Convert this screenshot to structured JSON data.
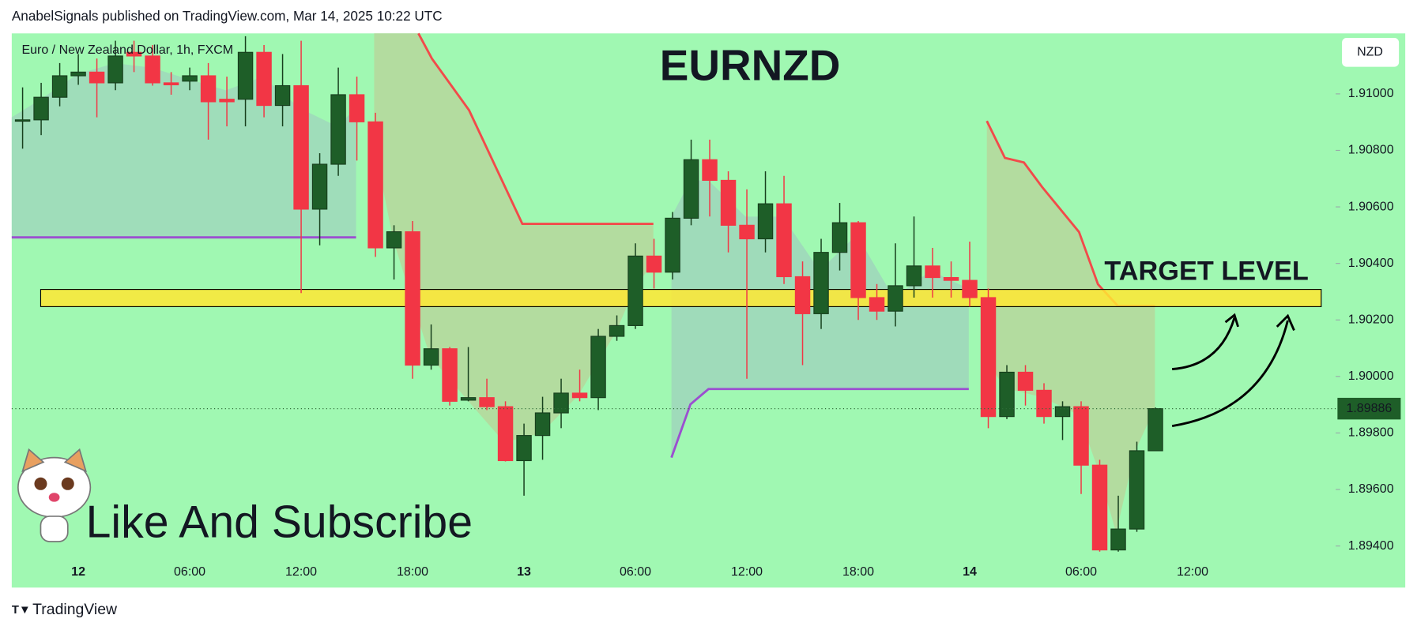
{
  "chart_data": {
    "type": "candlestick",
    "header": "AnabelSignals published on TradingView.com, Mar 14, 2025 10:22 UTC",
    "symbol": "Euro / New Zealand Dollar, 1h, FXCM",
    "title": "EURNZD",
    "currency": "NZD",
    "annotation": "TARGET LEVEL",
    "caption": "Like And Subscribe",
    "brand": "TradingView",
    "up_color": "#1e5e28",
    "down_color": "#f23645",
    "zone_color": "#ffe733",
    "target_zone": [
      1.90247,
      1.90308
    ],
    "categories": [
      null,
      null,
      null,
      "12",
      null,
      null,
      null,
      null,
      null,
      "06:00",
      null,
      null,
      null,
      null,
      null,
      "12:00",
      null,
      null,
      null,
      null,
      null,
      "18:00",
      null,
      null,
      null,
      null,
      null,
      "13",
      null,
      null,
      null,
      null,
      null,
      "06:00",
      null,
      null,
      null,
      null,
      null,
      "12:00",
      null,
      null,
      null,
      null,
      null,
      "18:00",
      null,
      null,
      null,
      null,
      null,
      "14",
      null,
      null,
      null,
      null,
      null,
      "06:00",
      null,
      null,
      null,
      null,
      null,
      "12:00"
    ],
    "open": [
      1.90908,
      1.90908,
      1.90988,
      1.91064,
      1.91077,
      1.91039,
      1.91147,
      1.91134,
      1.91039,
      1.91045,
      1.91064,
      1.90981,
      1.90981,
      1.91147,
      1.90959,
      1.91029,
      1.90592,
      1.90751,
      1.90997,
      1.90901,
      1.90455,
      1.90512,
      1.9004,
      1.90098,
      1.89916,
      1.89925,
      1.89893,
      1.89702,
      1.89791,
      1.89871,
      1.89941,
      1.89925,
      1.90142,
      1.9018,
      1.90426,
      1.90369,
      1.9056,
      1.90767,
      1.90694,
      1.90535,
      1.90487,
      1.90611,
      1.90353,
      1.90222,
      1.90439,
      1.90544,
      1.90279,
      1.90231,
      1.90321,
      1.90391,
      1.9035,
      1.9034,
      1.90279,
      1.89858,
      1.90015,
      1.89951,
      1.89858,
      1.89893,
      1.89686,
      1.89386,
      1.8946,
      1.89737,
      null,
      null
    ],
    "high": [
      1.91023,
      1.91039,
      1.91109,
      1.91141,
      1.91125,
      1.91188,
      1.91188,
      1.91173,
      1.91077,
      1.91093,
      1.91109,
      1.91061,
      1.91204,
      1.91173,
      1.91141,
      1.91188,
      1.9079,
      1.91093,
      1.91061,
      1.90933,
      1.90535,
      1.9055,
      1.90184,
      1.90104,
      1.90104,
      1.89992,
      1.89912,
      1.89833,
      1.89928,
      1.89992,
      1.90024,
      1.90168,
      1.90216,
      1.90471,
      1.90487,
      1.90582,
      1.90838,
      1.90838,
      1.90726,
      1.90662,
      1.90726,
      1.9071,
      1.90407,
      1.90487,
      1.90614,
      1.9055,
      1.90327,
      1.90471,
      1.90566,
      1.90455,
      1.90407,
      1.90477,
      1.90311,
      1.9004,
      1.9004,
      1.89976,
      1.89912,
      1.89912,
      1.89705,
      1.89578,
      1.89769,
      1.8989,
      null,
      null
    ],
    "low": [
      1.90806,
      1.90854,
      1.90956,
      1.91032,
      1.90917,
      1.91013,
      1.91077,
      1.91029,
      1.90997,
      1.91013,
      1.90838,
      1.90885,
      1.90885,
      1.90917,
      1.90885,
      1.90295,
      1.90464,
      1.9071,
      1.90764,
      1.90423,
      1.90343,
      1.89992,
      1.90024,
      1.89897,
      1.89912,
      1.89881,
      1.89699,
      1.89578,
      1.89705,
      1.89817,
      1.89912,
      1.89881,
      1.90126,
      1.90168,
      1.90311,
      1.90343,
      1.90535,
      1.90566,
      1.90439,
      1.89992,
      1.90439,
      1.90327,
      1.9004,
      1.90168,
      1.90375,
      1.902,
      1.902,
      1.90177,
      1.90279,
      1.90279,
      1.90279,
      1.90247,
      1.89817,
      1.89849,
      1.89897,
      1.89833,
      1.89775,
      1.89584,
      1.8938,
      1.8938,
      1.8945,
      1.89737,
      null,
      null
    ],
    "close": [
      1.90908,
      1.90988,
      1.91064,
      1.91077,
      1.91039,
      1.91134,
      1.91134,
      1.91039,
      1.91032,
      1.91064,
      1.90972,
      1.90972,
      1.91147,
      1.90959,
      1.91029,
      1.90592,
      1.90751,
      1.90997,
      1.90901,
      1.90455,
      1.90512,
      1.9004,
      1.90098,
      1.89912,
      1.89925,
      1.89893,
      1.89702,
      1.89791,
      1.89871,
      1.89941,
      1.89925,
      1.90142,
      1.9018,
      1.90426,
      1.90369,
      1.9056,
      1.90767,
      1.90694,
      1.90535,
      1.90487,
      1.90611,
      1.90353,
      1.90222,
      1.90439,
      1.90544,
      1.90279,
      1.90231,
      1.90321,
      1.90391,
      1.9035,
      1.9034,
      1.90279,
      1.89858,
      1.90015,
      1.89951,
      1.89858,
      1.89893,
      1.89686,
      1.89386,
      1.8946,
      1.89737,
      1.89886,
      null,
      null
    ],
    "ylim": [
      1.89256,
      1.91214
    ],
    "yticks": [
      {
        "value": 1.894,
        "label": "1.89400"
      },
      {
        "value": 1.896,
        "label": "1.89600"
      },
      {
        "value": 1.898,
        "label": "1.89800"
      },
      {
        "value": 1.9,
        "label": "1.90000"
      },
      {
        "value": 1.902,
        "label": "1.90200"
      },
      {
        "value": 1.904,
        "label": "1.90400"
      },
      {
        "value": 1.906,
        "label": "1.90600"
      },
      {
        "value": 1.908,
        "label": "1.90800"
      },
      {
        "value": 1.91,
        "label": "1.91000"
      }
    ],
    "bold_ticks": [
      "12",
      "13",
      "14"
    ]
  }
}
